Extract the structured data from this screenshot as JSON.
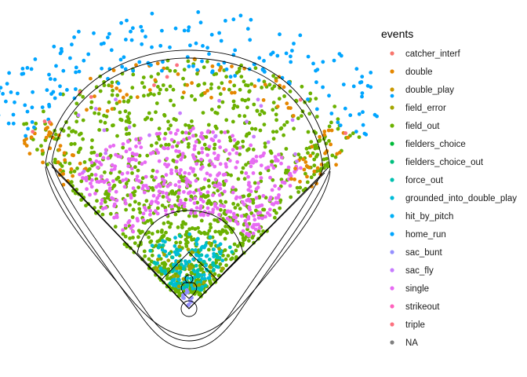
{
  "chart_data": {
    "type": "scatter",
    "title": "",
    "xlabel": "",
    "ylabel": "",
    "grid": false,
    "axes_visible": false,
    "legend_position": "right",
    "legend": {
      "title": "events",
      "entries": [
        {
          "label": "catcher_interf",
          "color": "#F8766D"
        },
        {
          "label": "double",
          "color": "#E58700"
        },
        {
          "label": "double_play",
          "color": "#C99800"
        },
        {
          "label": "field_error",
          "color": "#A3A500"
        },
        {
          "label": "field_out",
          "color": "#6BB100"
        },
        {
          "label": "fielders_choice",
          "color": "#00BA38"
        },
        {
          "label": "fielders_choice_out",
          "color": "#00BF7D"
        },
        {
          "label": "force_out",
          "color": "#00C0AF"
        },
        {
          "label": "grounded_into_double_play",
          "color": "#00BCD8"
        },
        {
          "label": "hit_by_pitch",
          "color": "#00B0F6"
        },
        {
          "label": "home_run",
          "color": "#00A5FF"
        },
        {
          "label": "sac_bunt",
          "color": "#9590FF"
        },
        {
          "label": "sac_fly",
          "color": "#C77CFF"
        },
        {
          "label": "single",
          "color": "#E76BF3"
        },
        {
          "label": "strikeout",
          "color": "#FF62BC"
        },
        {
          "label": "triple",
          "color": "#FC717F"
        },
        {
          "label": "NA",
          "color": "#7F7F7F"
        }
      ]
    },
    "series_summary": [
      {
        "name": "home_run",
        "zone": "beyond outfield fence",
        "approx_count": 190
      },
      {
        "name": "double",
        "zone": "outfield gaps and foul lines",
        "approx_count": 120
      },
      {
        "name": "field_out",
        "zone": "entire field",
        "approx_count": 1100
      },
      {
        "name": "single",
        "zone": "shallow outfield and infield",
        "approx_count": 420
      },
      {
        "name": "grounded_into_double_play",
        "zone": "infield",
        "approx_count": 110
      },
      {
        "name": "force_out",
        "zone": "infield",
        "approx_count": 60
      },
      {
        "name": "sac_fly",
        "zone": "outfield",
        "approx_count": 20
      },
      {
        "name": "sac_bunt",
        "zone": "near home plate",
        "approx_count": 12
      },
      {
        "name": "field_error",
        "zone": "infield",
        "approx_count": 25
      },
      {
        "name": "triple",
        "zone": "deep outfield corners",
        "approx_count": 10
      }
    ]
  }
}
